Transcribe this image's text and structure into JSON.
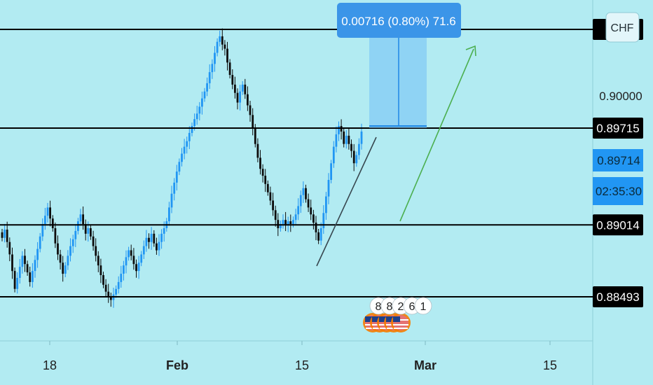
{
  "symbol_badge": "CHF",
  "measure_tooltip": "0.00716 (0.80%) 71.6",
  "countdown": "02:35:30",
  "event_markers": [
    "8",
    "8",
    "2",
    "6",
    "1"
  ],
  "colors": {
    "background": "#b2ebf2",
    "candle": "#2196f3",
    "candle_dark": "#0d0d0d",
    "level_line": "#000000",
    "price_tag_bg": "#000000",
    "current_price_bg": "#2196f3",
    "measure_box": "#64b5f6",
    "arrow": "#4caf50",
    "trendline": "#37474f"
  },
  "chart_data": {
    "type": "candlestick",
    "x_tick_labels": [
      "18",
      "Feb",
      "15",
      "Mar",
      "15"
    ],
    "y_tick_labels": [
      "0.90000"
    ],
    "ylim": [
      0.8828,
      0.9077
    ],
    "horizontal_levels": [
      {
        "value": 0.9043,
        "label": ""
      },
      {
        "value": 0.89715,
        "label": "0.89715"
      },
      {
        "value": 0.89014,
        "label": "0.89014"
      },
      {
        "value": 0.88493,
        "label": "0.88493"
      }
    ],
    "current_price": "0.89714",
    "measure": {
      "from": 0.89715,
      "to": 0.90431,
      "change": "0.00716",
      "percent": "0.80%",
      "pips": "71.6"
    },
    "candles_close": [
      0.8892,
      0.8898,
      0.8889,
      0.888,
      0.8868,
      0.8855,
      0.8863,
      0.8871,
      0.8879,
      0.8873,
      0.8867,
      0.886,
      0.8868,
      0.8876,
      0.8884,
      0.8893,
      0.8902,
      0.8908,
      0.8914,
      0.8906,
      0.8899,
      0.8888,
      0.888,
      0.8874,
      0.8866,
      0.8872,
      0.8879,
      0.8886,
      0.8891,
      0.8897,
      0.8904,
      0.8909,
      0.8902,
      0.8895,
      0.8899,
      0.8893,
      0.8886,
      0.8879,
      0.8872,
      0.8865,
      0.8858,
      0.8853,
      0.8849,
      0.8847,
      0.8851,
      0.8855,
      0.886,
      0.8866,
      0.8872,
      0.8878,
      0.8883,
      0.8879,
      0.8873,
      0.8868,
      0.8874,
      0.888,
      0.8886,
      0.8892,
      0.8889,
      0.8895,
      0.8888,
      0.8883,
      0.8889,
      0.8895,
      0.8899,
      0.8904,
      0.8914,
      0.8924,
      0.8932,
      0.894,
      0.8947,
      0.8953,
      0.8958,
      0.8962,
      0.8968,
      0.8973,
      0.8978,
      0.8982,
      0.8987,
      0.8993,
      0.8998,
      0.9004,
      0.9012,
      0.9018,
      0.9026,
      0.9034,
      0.9038,
      0.9032,
      0.9029,
      0.9019,
      0.901,
      0.9003,
      0.8997,
      0.899,
      0.8998,
      0.9003,
      0.8996,
      0.8988,
      0.8981,
      0.8972,
      0.896,
      0.895,
      0.8942,
      0.8937,
      0.8931,
      0.8925,
      0.8919,
      0.8912,
      0.8905,
      0.8899,
      0.8902,
      0.8905,
      0.8901,
      0.8904,
      0.8902,
      0.8905,
      0.8909,
      0.8915,
      0.8923,
      0.8928,
      0.892,
      0.8914,
      0.8909,
      0.8903,
      0.8896,
      0.889,
      0.8899,
      0.891,
      0.8922,
      0.8934,
      0.8946,
      0.8958,
      0.8967,
      0.8973,
      0.8969,
      0.896,
      0.8966,
      0.896,
      0.8955,
      0.8946,
      0.8952,
      0.896,
      0.8969
    ]
  }
}
